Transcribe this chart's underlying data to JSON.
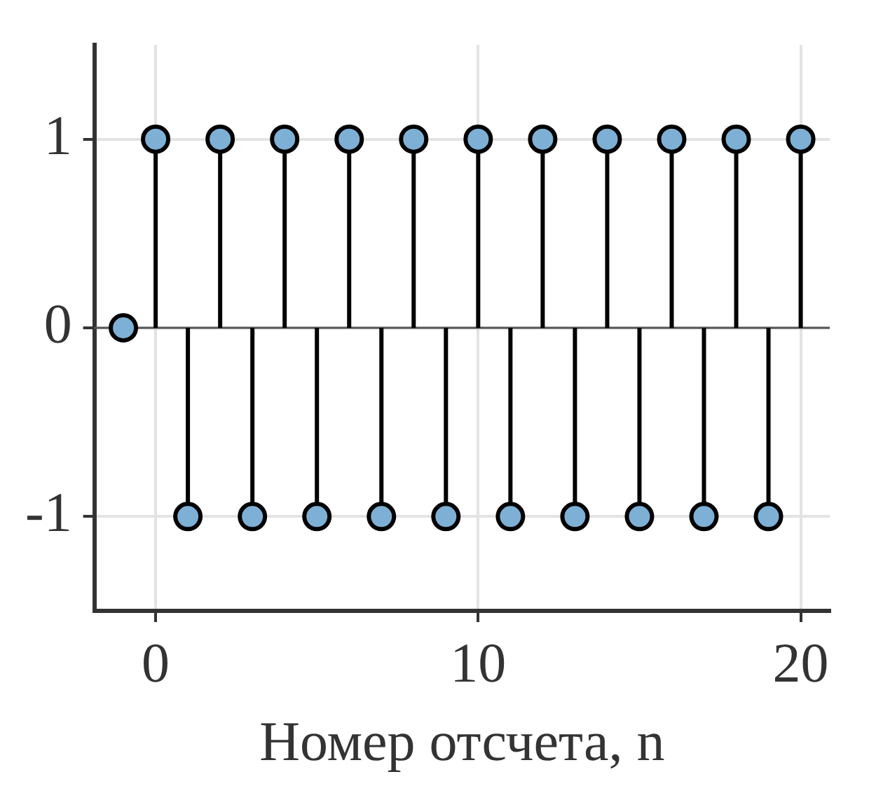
{
  "chart_data": {
    "type": "lollipop",
    "xlabel": "Номер отсчета, n",
    "x": [
      -1,
      0,
      1,
      2,
      3,
      4,
      5,
      6,
      7,
      8,
      9,
      10,
      11,
      12,
      13,
      14,
      15,
      16,
      17,
      18,
      19,
      20
    ],
    "values": [
      0,
      1,
      -1,
      1,
      -1,
      1,
      -1,
      1,
      -1,
      1,
      -1,
      1,
      -1,
      1,
      -1,
      1,
      -1,
      1,
      -1,
      1,
      -1,
      1
    ],
    "color": "#7eb0d5",
    "xlim": [
      -1.9,
      20.9
    ],
    "xticks": [
      0,
      10,
      20
    ],
    "ylim": [
      -1.5,
      1.5
    ],
    "yticks": [
      -1,
      0,
      1
    ],
    "grid": true,
    "marker": "circle"
  }
}
